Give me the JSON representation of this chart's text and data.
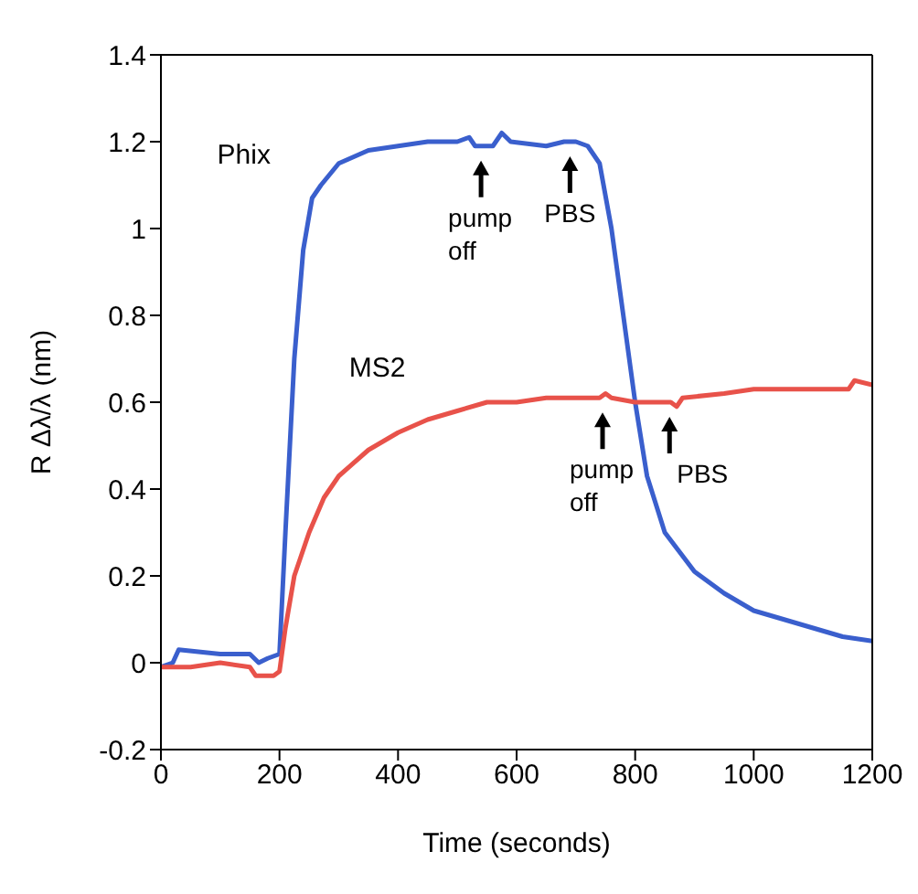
{
  "chart_data": {
    "type": "line",
    "xlabel": "Time (seconds)",
    "ylabel": "R Δλ/λ (nm)",
    "xlim": [
      0,
      1200
    ],
    "xticks": [
      0,
      200,
      400,
      600,
      800,
      1000,
      1200
    ],
    "ylim": [
      -0.2,
      1.4
    ],
    "yticks": [
      -0.2,
      0,
      0.2,
      0.4,
      0.6,
      0.8,
      1,
      1.2,
      1.4
    ],
    "series": [
      {
        "name": "Phix",
        "color": "#3a5fcd",
        "x": [
          0,
          20,
          30,
          100,
          150,
          165,
          180,
          200,
          210,
          225,
          240,
          255,
          270,
          300,
          350,
          400,
          450,
          500,
          520,
          530,
          560,
          575,
          590,
          650,
          680,
          700,
          720,
          740,
          760,
          780,
          800,
          820,
          850,
          900,
          950,
          1000,
          1050,
          1100,
          1150,
          1200
        ],
        "values": [
          -0.01,
          0.0,
          0.03,
          0.02,
          0.02,
          0.0,
          0.01,
          0.02,
          0.3,
          0.7,
          0.95,
          1.07,
          1.1,
          1.15,
          1.18,
          1.19,
          1.2,
          1.2,
          1.21,
          1.19,
          1.19,
          1.22,
          1.2,
          1.19,
          1.2,
          1.2,
          1.19,
          1.15,
          1.0,
          0.8,
          0.6,
          0.43,
          0.3,
          0.21,
          0.16,
          0.12,
          0.1,
          0.08,
          0.06,
          0.05
        ]
      },
      {
        "name": "MS2",
        "color": "#e8524a",
        "x": [
          0,
          50,
          100,
          150,
          160,
          190,
          200,
          210,
          225,
          250,
          275,
          300,
          350,
          400,
          450,
          500,
          550,
          600,
          650,
          700,
          740,
          750,
          760,
          800,
          850,
          860,
          870,
          880,
          950,
          1000,
          1100,
          1160,
          1170,
          1200
        ],
        "values": [
          -0.01,
          -0.01,
          0.0,
          -0.01,
          -0.03,
          -0.03,
          -0.02,
          0.08,
          0.2,
          0.3,
          0.38,
          0.43,
          0.49,
          0.53,
          0.56,
          0.58,
          0.6,
          0.6,
          0.61,
          0.61,
          0.61,
          0.62,
          0.61,
          0.6,
          0.6,
          0.6,
          0.59,
          0.61,
          0.62,
          0.63,
          0.63,
          0.63,
          0.65,
          0.64
        ]
      }
    ],
    "annotations": [
      {
        "text": "pump off",
        "x": 540,
        "y": 1.19
      },
      {
        "text": "PBS",
        "x": 690,
        "y": 1.2
      },
      {
        "text": "pump off",
        "x": 745,
        "y": 0.61
      },
      {
        "text": "PBS",
        "x": 858,
        "y": 0.6
      }
    ]
  }
}
